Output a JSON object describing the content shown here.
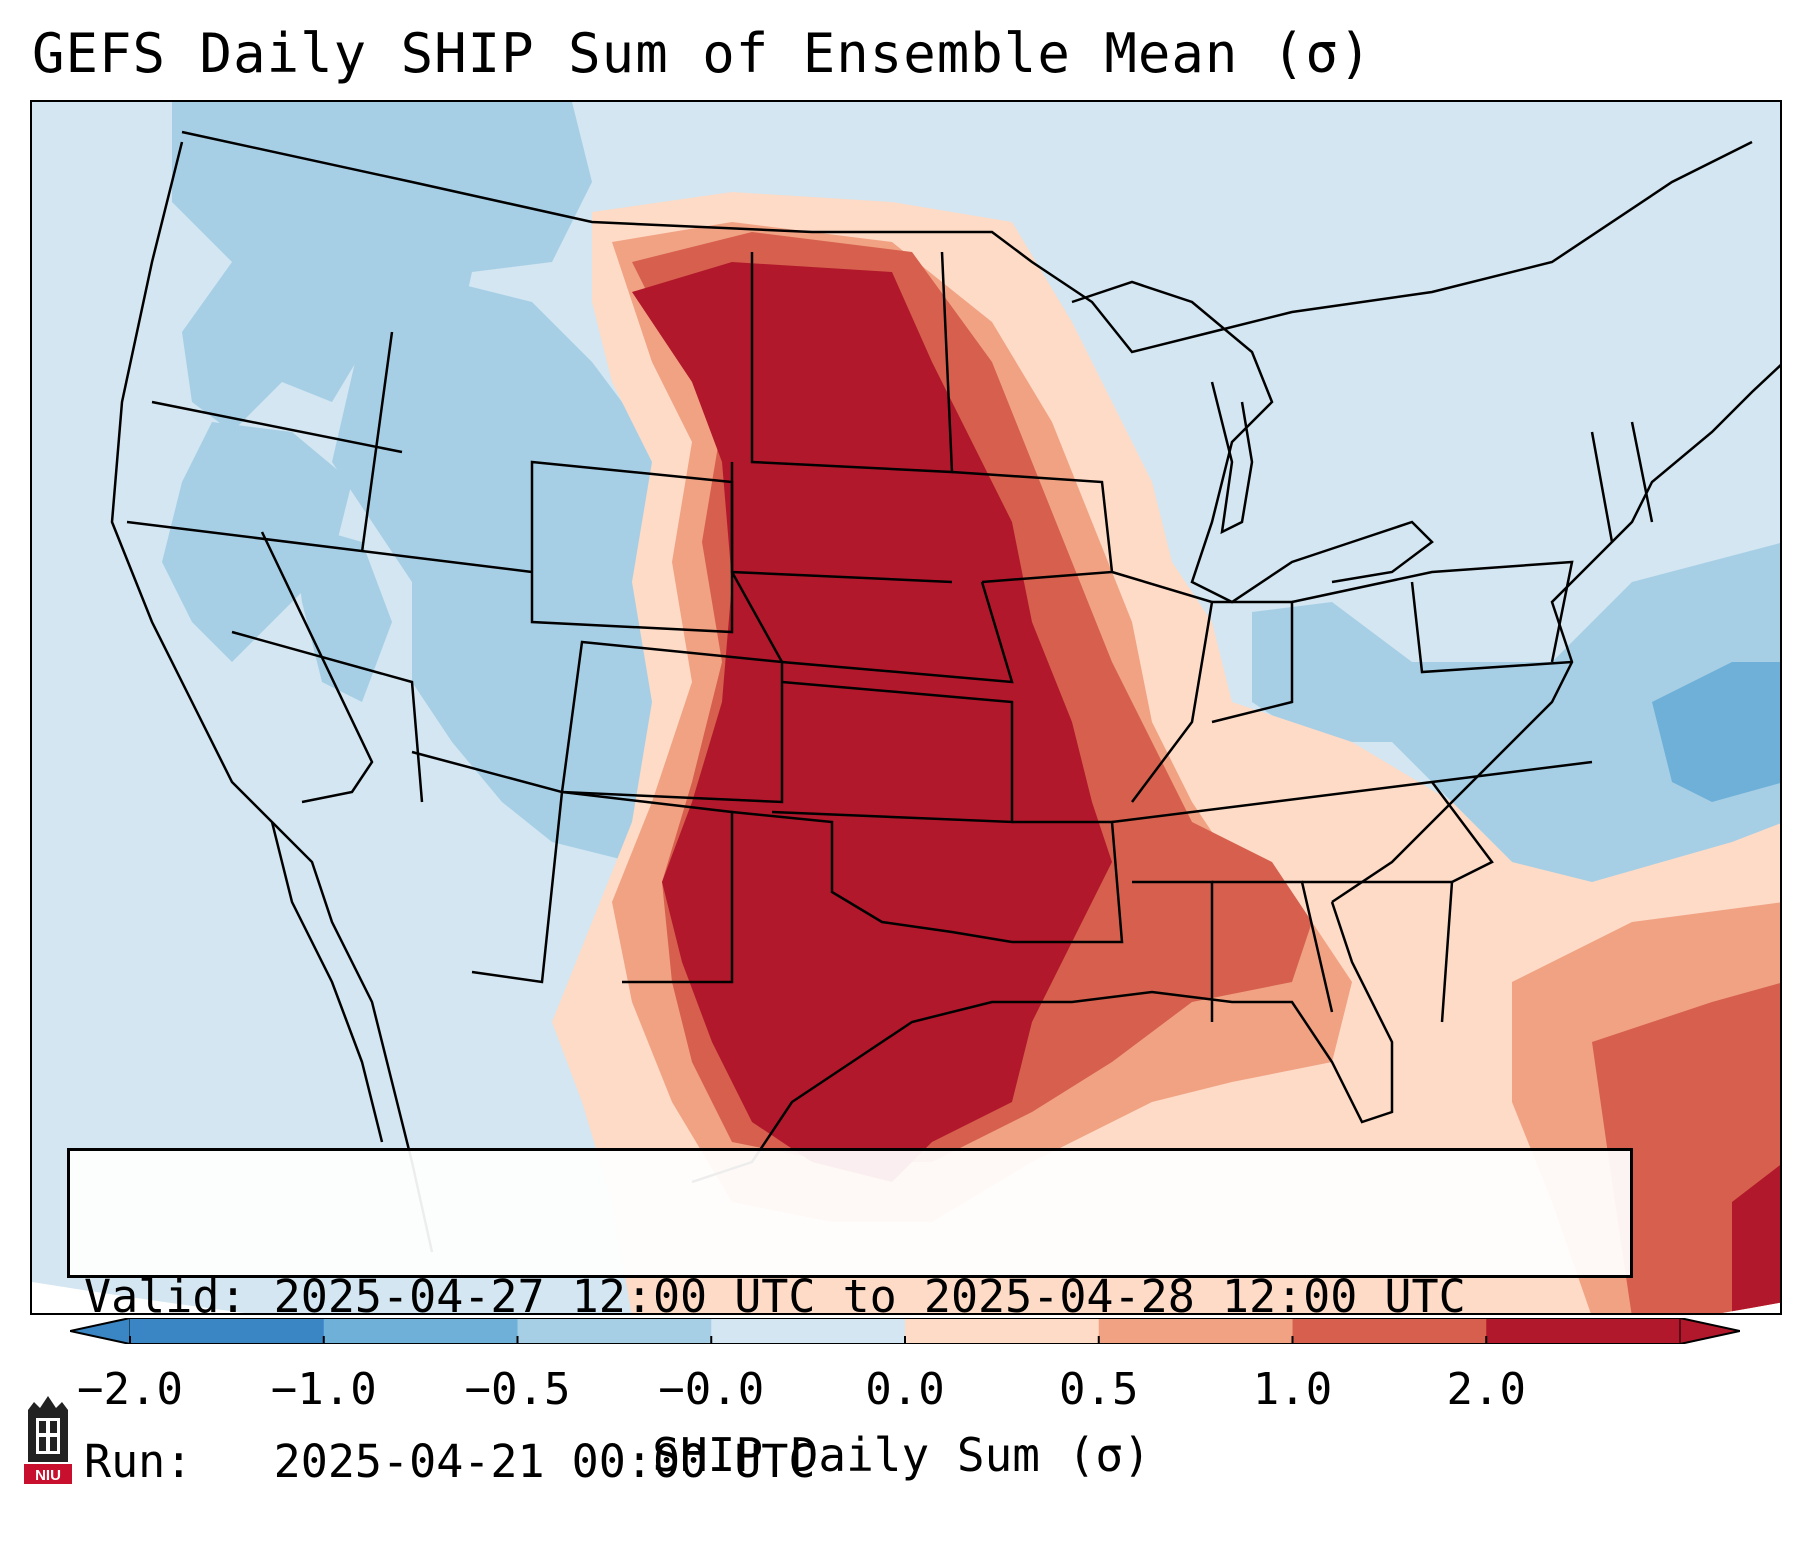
{
  "title": "GEFS Daily SHIP Sum of Ensemble Mean (σ)",
  "info": {
    "valid_line": "Valid: 2025-04-27 12:00 UTC to 2025-04-28 12:00 UTC",
    "run_line": "Run:   2025-04-21 00:00 UTC"
  },
  "colorbar": {
    "label": "SHIP Daily Sum (σ)",
    "ticks": [
      "−2.0",
      "−1.0",
      "−0.5",
      "−0.0",
      "0.0",
      "0.5",
      "1.0",
      "2.0"
    ],
    "colors": [
      "#3a86c4",
      "#6fb0d8",
      "#a6cfe6",
      "#d3e6f1",
      "#fddbc7",
      "#f1a283",
      "#d6604d",
      "#b2182b"
    ],
    "extend": "both"
  },
  "logo": {
    "text": "NIU",
    "color": "#c8102e"
  },
  "map": {
    "background_color": "#d3e6f1",
    "outside_domain_color": "#ffffff",
    "border_color": "#000000",
    "palette": {
      "strong_negative": "#6fb0d8",
      "negative": "#a6cfe6",
      "neutral_negative": "#d3e6f1",
      "neutral_positive": "#fddbc7",
      "positive": "#f1a283",
      "strong_positive": "#d6604d",
      "extreme_positive": "#b2182b"
    }
  }
}
